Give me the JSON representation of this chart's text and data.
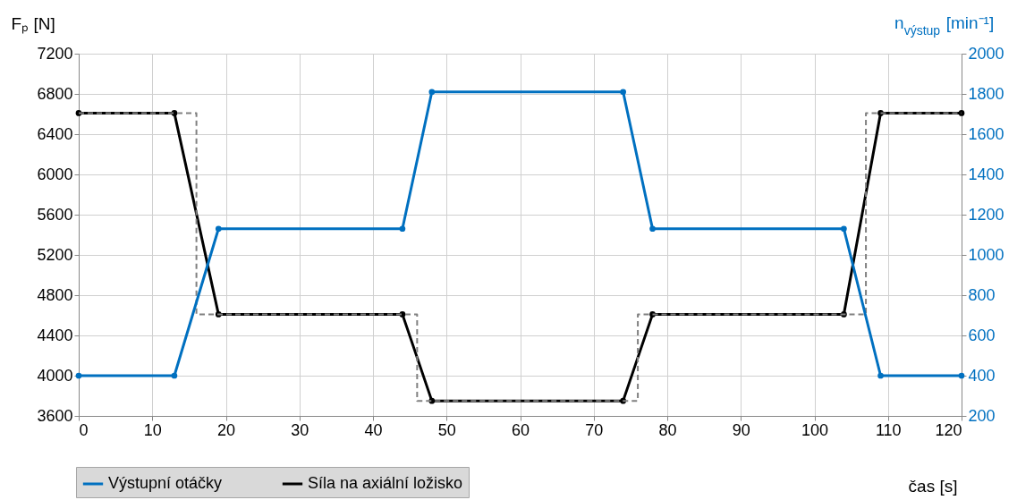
{
  "chart_data": {
    "type": "line",
    "xlabel": "čas [s]",
    "ylabel": "Fₚ [N]",
    "y2label": "n$_{výstup}$ [min⁻¹]",
    "x": [
      0,
      13,
      19,
      44,
      48,
      74,
      78,
      104,
      109,
      120
    ],
    "xlim": [
      0,
      120
    ],
    "xticks": [
      0,
      10,
      20,
      30,
      40,
      50,
      60,
      70,
      80,
      90,
      100,
      110,
      120
    ],
    "ylim": [
      3600,
      7200
    ],
    "yticks": [
      3600,
      4000,
      4400,
      4800,
      5200,
      5600,
      6000,
      6400,
      6800,
      7200
    ],
    "y2lim": [
      200,
      2000
    ],
    "y2ticks": [
      200,
      400,
      600,
      800,
      1000,
      1200,
      1400,
      1600,
      1800,
      2000
    ],
    "series": [
      {
        "name": "Výstupní otáčky",
        "color": "#0070c0",
        "axis": "y2",
        "marker": "circle",
        "values": [
          400,
          400,
          1130,
          1130,
          1810,
          1810,
          1130,
          1130,
          400,
          400
        ]
      },
      {
        "name": "Síla na axiální ložisko",
        "color": "#000000",
        "marker": "circle",
        "values": [
          6610,
          6610,
          4610,
          4610,
          3750,
          3750,
          4610,
          4610,
          6610,
          6610
        ]
      },
      {
        "type": "step",
        "color": "#808080",
        "line_style": "dashed",
        "marker": "none",
        "x": [
          0,
          16,
          46,
          76,
          107,
          120
        ],
        "values": [
          6610,
          4610,
          3750,
          4610,
          6610,
          6610
        ]
      }
    ],
    "grid": true,
    "legend": "bottom left",
    "line_style": "solid"
  }
}
